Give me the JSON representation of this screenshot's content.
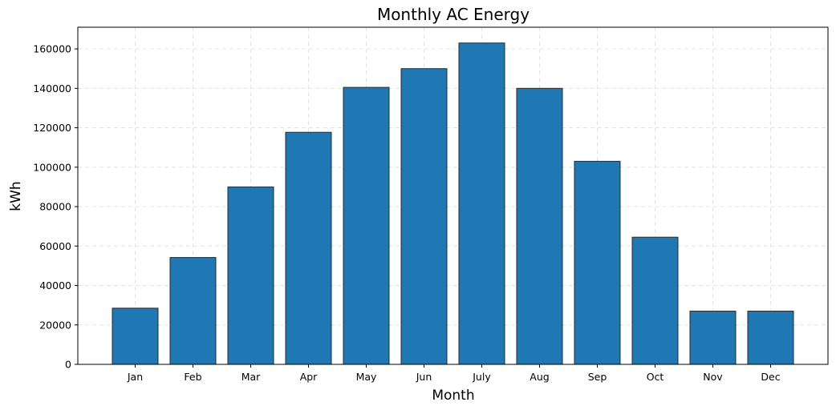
{
  "chart_data": {
    "type": "bar",
    "title": "Monthly AC Energy",
    "xlabel": "Month",
    "ylabel": "kWh",
    "categories": [
      "Jan",
      "Feb",
      "Mar",
      "Apr",
      "May",
      "Jun",
      "July",
      "Aug",
      "Sep",
      "Oct",
      "Nov",
      "Dec"
    ],
    "values": [
      28500,
      54200,
      90000,
      117700,
      140500,
      150000,
      163000,
      140000,
      103000,
      64500,
      27000,
      27000
    ],
    "ylim": [
      0,
      171000
    ],
    "yticks": [
      0,
      20000,
      40000,
      60000,
      80000,
      100000,
      120000,
      140000,
      160000
    ],
    "ytick_labels": [
      "0",
      "20000",
      "40000",
      "60000",
      "80000",
      "100000",
      "120000",
      "140000",
      "160000"
    ],
    "grid": true,
    "colors": {
      "bar": "#1f77b4",
      "bar_edge": "#2b2b2b",
      "grid": "#e3e3e3",
      "axis": "#000000"
    }
  }
}
